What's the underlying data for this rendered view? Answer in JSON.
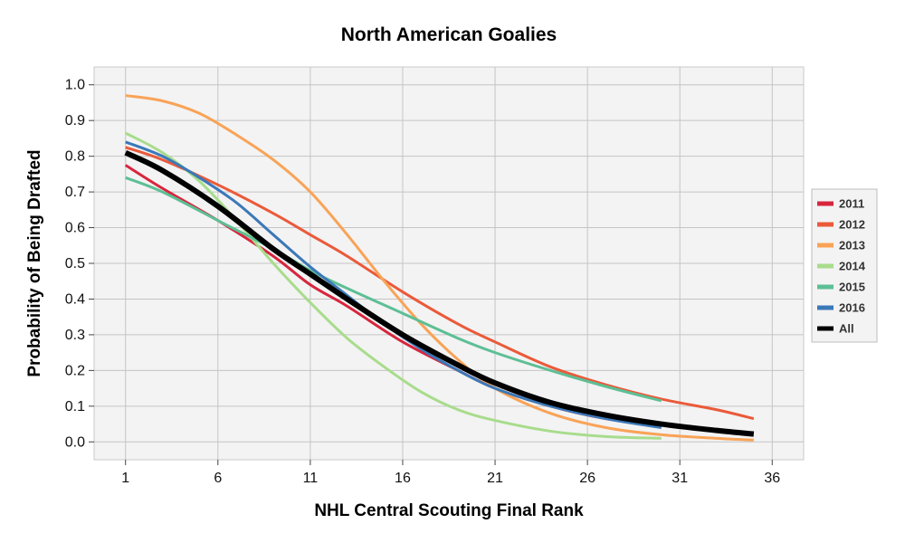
{
  "chart_data": {
    "type": "line",
    "title": "North American Goalies",
    "xlabel": "NHL Central Scouting Final Rank",
    "ylabel": "Probability of Being Drafted",
    "xlim": [
      -0.7,
      37.7
    ],
    "ylim": [
      -0.05,
      1.05
    ],
    "xticks": [
      1,
      6,
      11,
      16,
      21,
      26,
      31,
      36
    ],
    "yticks": [
      "0.0",
      "0.1",
      "0.2",
      "0.3",
      "0.4",
      "0.5",
      "0.6",
      "0.7",
      "0.8",
      "0.9",
      "1.0"
    ],
    "grid": true,
    "legend": "right",
    "series": [
      {
        "name": "2011",
        "color": "#d7263d",
        "x": [
          1,
          3,
          6,
          9,
          11,
          13,
          16,
          19,
          21,
          24,
          27,
          30
        ],
        "y": [
          0.775,
          0.71,
          0.62,
          0.52,
          0.44,
          0.38,
          0.28,
          0.2,
          0.15,
          0.1,
          0.065,
          0.045
        ]
      },
      {
        "name": "2012",
        "color": "#ea5a3a",
        "x": [
          1,
          3,
          6,
          9,
          11,
          13,
          16,
          19,
          21,
          24,
          27,
          30,
          33,
          35
        ],
        "y": [
          0.825,
          0.79,
          0.72,
          0.64,
          0.58,
          0.52,
          0.42,
          0.33,
          0.28,
          0.21,
          0.16,
          0.12,
          0.09,
          0.065
        ]
      },
      {
        "name": "2013",
        "color": "#f9a357",
        "x": [
          1,
          3,
          5,
          7,
          9,
          11,
          13,
          15,
          17,
          19,
          21,
          24,
          27,
          30,
          33,
          35
        ],
        "y": [
          0.97,
          0.955,
          0.92,
          0.86,
          0.79,
          0.7,
          0.58,
          0.45,
          0.33,
          0.23,
          0.15,
          0.08,
          0.04,
          0.02,
          0.01,
          0.005
        ]
      },
      {
        "name": "2014",
        "color": "#a8dc8c",
        "x": [
          1,
          3,
          5,
          7,
          9,
          11,
          13,
          15,
          17,
          19,
          21,
          24,
          27,
          30
        ],
        "y": [
          0.865,
          0.81,
          0.73,
          0.62,
          0.5,
          0.39,
          0.29,
          0.21,
          0.14,
          0.09,
          0.06,
          0.03,
          0.015,
          0.01
        ]
      },
      {
        "name": "2015",
        "color": "#5dbf95",
        "x": [
          1,
          3,
          6,
          9,
          11,
          13,
          16,
          19,
          21,
          24,
          27,
          30
        ],
        "y": [
          0.74,
          0.7,
          0.62,
          0.54,
          0.48,
          0.43,
          0.36,
          0.29,
          0.25,
          0.2,
          0.155,
          0.115
        ]
      },
      {
        "name": "2016",
        "color": "#3b78b8",
        "x": [
          1,
          3,
          5,
          7,
          9,
          11,
          13,
          15,
          17,
          19,
          21,
          24,
          27,
          30
        ],
        "y": [
          0.84,
          0.8,
          0.74,
          0.67,
          0.58,
          0.49,
          0.41,
          0.33,
          0.26,
          0.2,
          0.15,
          0.1,
          0.065,
          0.04
        ]
      },
      {
        "name": "All",
        "color": "#000000",
        "width": 6,
        "x": [
          1,
          3,
          6,
          9,
          11,
          13,
          16,
          19,
          21,
          24,
          27,
          30,
          33,
          35
        ],
        "y": [
          0.81,
          0.76,
          0.66,
          0.54,
          0.47,
          0.4,
          0.3,
          0.215,
          0.165,
          0.11,
          0.075,
          0.05,
          0.032,
          0.022
        ]
      }
    ]
  }
}
